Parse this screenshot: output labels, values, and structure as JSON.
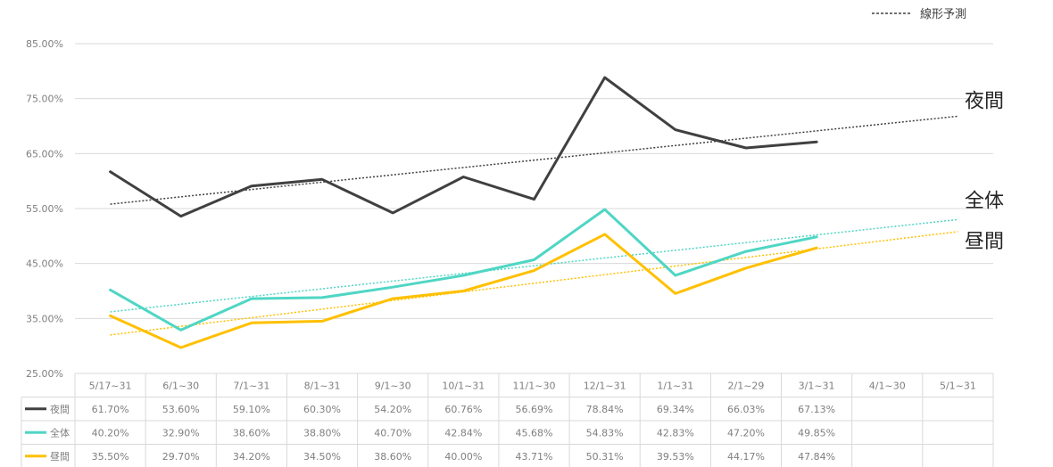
{
  "chart_data": {
    "type": "line",
    "ylim": [
      25,
      85
    ],
    "yticks": [
      "25.00%",
      "35.00%",
      "45.00%",
      "55.00%",
      "65.00%",
      "75.00%",
      "85.00%"
    ],
    "yticks_values": [
      25,
      35,
      45,
      55,
      65,
      75,
      85
    ],
    "categories": [
      "5/17~31",
      "6/1~30",
      "7/1~31",
      "8/1~31",
      "9/1~30",
      "10/1~31",
      "11/1~30",
      "12/1~31",
      "1/1~31",
      "2/1~29",
      "3/1~31",
      "4/1~30",
      "5/1~31"
    ],
    "series": [
      {
        "name": "夜間",
        "end_label": "夜間",
        "color": "#404040",
        "values": [
          61.7,
          53.6,
          59.1,
          60.3,
          54.2,
          60.76,
          56.69,
          78.84,
          69.34,
          66.03,
          67.13,
          null,
          null
        ],
        "labels": [
          "61.70%",
          "53.60%",
          "59.10%",
          "60.30%",
          "54.20%",
          "60.76%",
          "56.69%",
          "78.84%",
          "69.34%",
          "66.03%",
          "67.13%",
          "",
          ""
        ],
        "trend": [
          55.8,
          71.8
        ]
      },
      {
        "name": "全体",
        "end_label": "全体",
        "color": "#4fd6c4",
        "values": [
          40.2,
          32.9,
          38.6,
          38.8,
          40.7,
          42.84,
          45.68,
          54.83,
          42.83,
          47.2,
          49.85,
          null,
          null
        ],
        "labels": [
          "40.20%",
          "32.90%",
          "38.60%",
          "38.80%",
          "40.70%",
          "42.84%",
          "45.68%",
          "54.83%",
          "42.83%",
          "47.20%",
          "49.85%",
          "",
          ""
        ],
        "trend": [
          36.2,
          53.0
        ]
      },
      {
        "name": "昼間",
        "end_label": "昼間",
        "color": "#ffc000",
        "values": [
          35.5,
          29.7,
          34.2,
          34.5,
          38.6,
          40.0,
          43.71,
          50.31,
          39.53,
          44.17,
          47.84,
          null,
          null
        ],
        "labels": [
          "35.50%",
          "29.70%",
          "34.20%",
          "34.50%",
          "38.60%",
          "40.00%",
          "43.71%",
          "50.31%",
          "39.53%",
          "44.17%",
          "47.84%",
          "",
          ""
        ],
        "trend": [
          32.0,
          50.8
        ]
      }
    ],
    "legend": {
      "label": "線形予測",
      "position": "top-right"
    },
    "grid": true
  }
}
